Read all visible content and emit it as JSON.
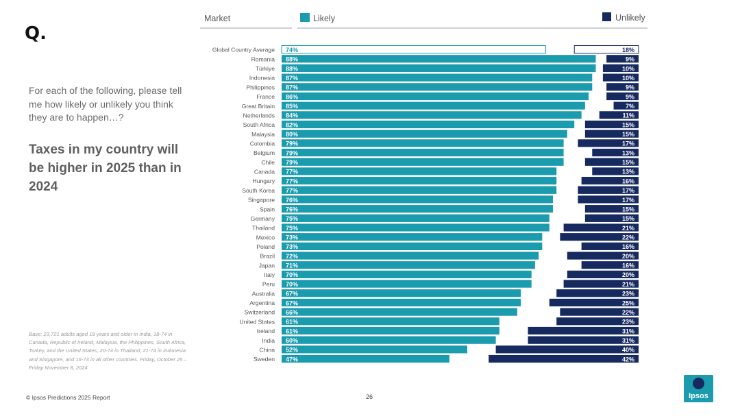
{
  "page": {
    "q_mark": "Q.",
    "question": "For each of the following, please tell me how likely or unlikely you think they are to happen…?",
    "statement": "Taxes in my country will be higher in 2025 than in 2024",
    "base_note": "Base: 23,721 adults aged 18 years and older in India, 18-74 in Canada, Republic of Ireland, Malaysia, the Philippines, South Africa, Turkey, and the United States, 20-74 in Thailand, 21-74 in Indonesia and Singapore, and 16-74 in all other countries. Friday, October 25 – Friday November 8, 2024",
    "footer_left": "© Ipsos Predictions 2025 Report",
    "page_number": "26",
    "logo_text": "Ipsos"
  },
  "colors": {
    "likely": "#1a9bae",
    "unlikely": "#162a5f",
    "average_fill": "#ffffff",
    "header_rule": "#9aa0a6",
    "label_text": "#555555"
  },
  "chart_data": {
    "type": "bar",
    "orientation": "horizontal",
    "column_header": "Market",
    "series": [
      {
        "name": "Likely",
        "values": [
          74,
          88,
          88,
          87,
          87,
          86,
          85,
          84,
          82,
          80,
          79,
          79,
          79,
          77,
          77,
          77,
          76,
          76,
          75,
          75,
          73,
          73,
          72,
          71,
          70,
          70,
          67,
          67,
          66,
          61,
          61,
          60,
          52,
          47
        ]
      },
      {
        "name": "Unlikely",
        "values": [
          18,
          9,
          10,
          10,
          9,
          9,
          7,
          11,
          15,
          15,
          17,
          13,
          15,
          13,
          16,
          17,
          17,
          15,
          15,
          21,
          22,
          16,
          20,
          16,
          20,
          21,
          23,
          25,
          22,
          23,
          31,
          31,
          40,
          42
        ]
      }
    ],
    "categories": [
      "Global Country Average",
      "Romania",
      "Türkiye",
      "Indonesia",
      "Philippines",
      "France",
      "Great Britain",
      "Netherlands",
      "South Africa",
      "Malaysia",
      "Colombia",
      "Belgium",
      "Chile",
      "Canada",
      "Hungary",
      "South Korea",
      "Singapore",
      "Spain",
      "Germany",
      "Thailand",
      "Mexico",
      "Poland",
      "Brazil",
      "Japan",
      "Italy",
      "Peru",
      "Australia",
      "Argentina",
      "Switzerland",
      "United States",
      "Ireland",
      "India",
      "China",
      "Sweden"
    ],
    "value_suffix": "%",
    "xlim": [
      0,
      100
    ],
    "legend_position": "top"
  }
}
